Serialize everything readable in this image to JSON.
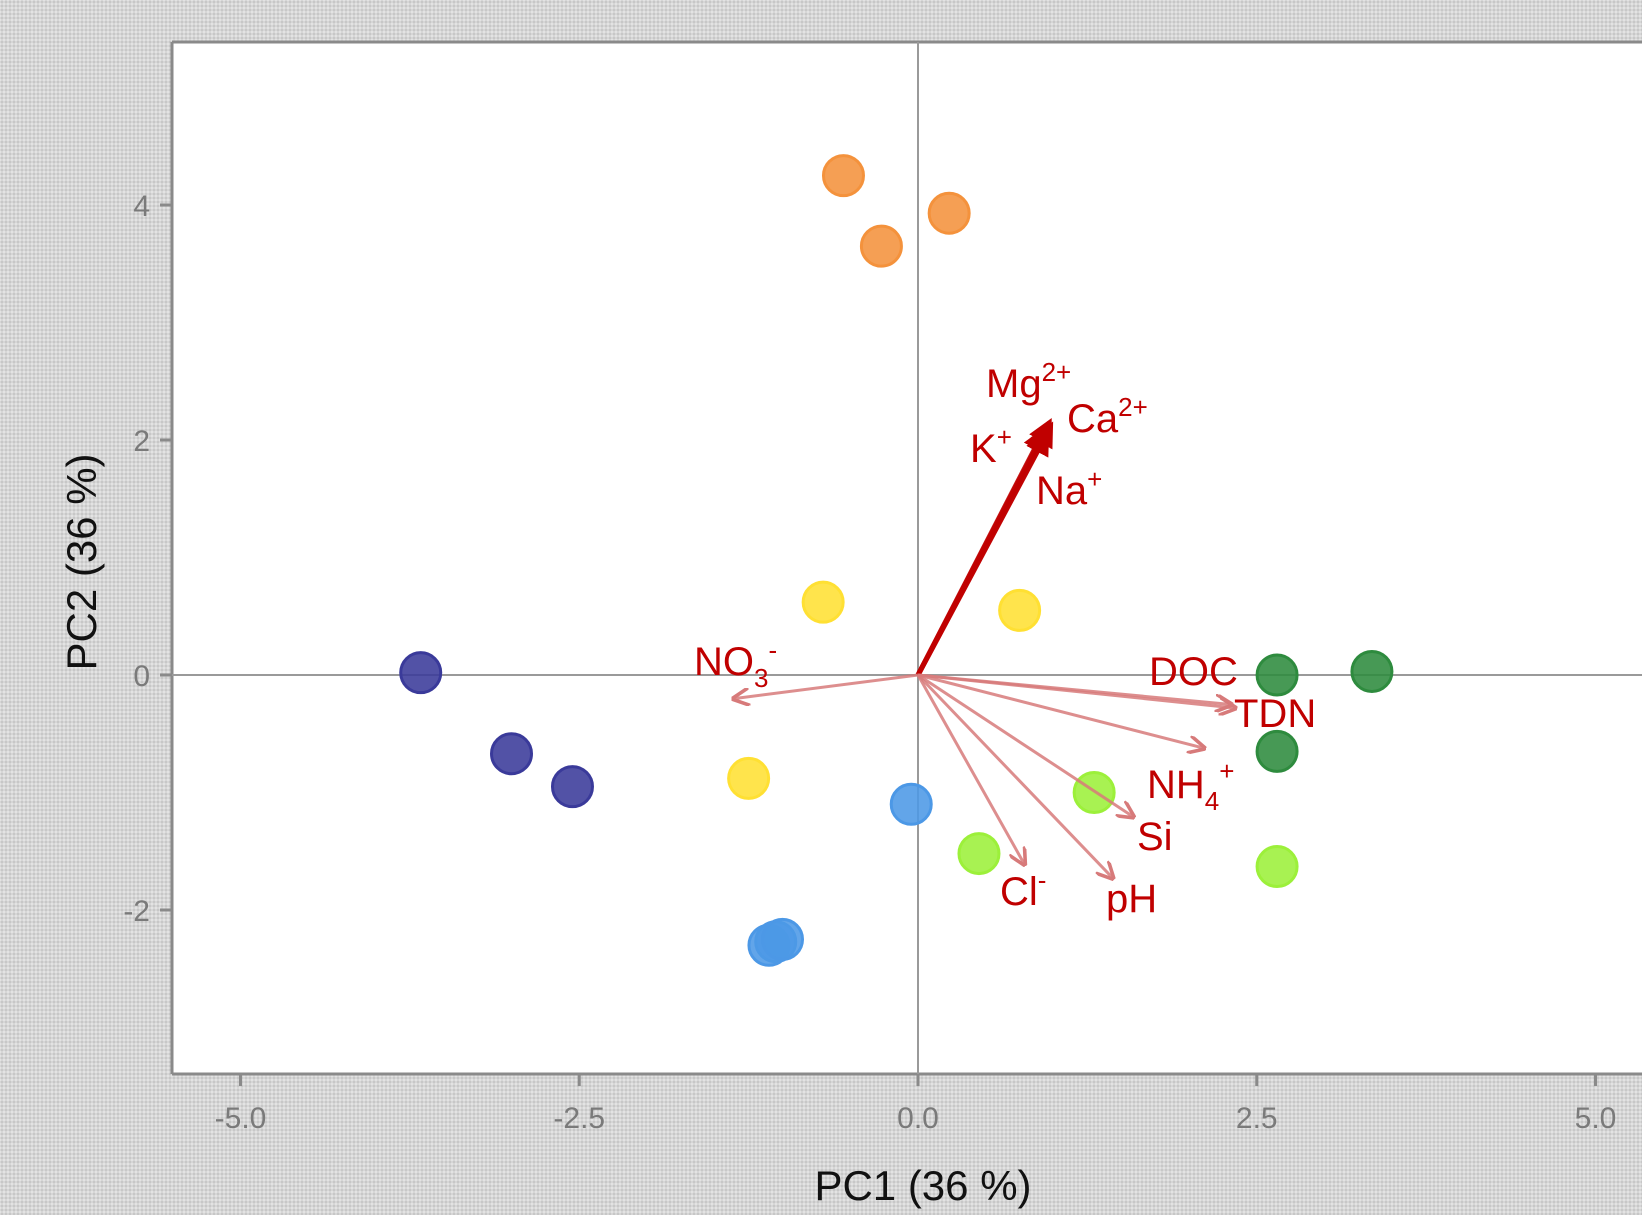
{
  "chart_data": {
    "type": "scatter",
    "subtype": "pca-biplot",
    "title": "",
    "xlabel": "PC1 (36 %)",
    "ylabel": "PC2 (36 %)",
    "xlim": [
      -5.5,
      5.3
    ],
    "ylim": [
      -3.4,
      5.3
    ],
    "x_ticks": [
      -5.0,
      -2.5,
      0.0,
      2.5,
      5.0
    ],
    "x_tick_labels": [
      "-5.0",
      "-2.5",
      "0.0",
      "2.5",
      "5.0"
    ],
    "y_ticks": [
      -2,
      0,
      2,
      4
    ],
    "y_tick_labels": [
      "-2",
      "0",
      "2",
      "4"
    ],
    "grid": false,
    "reference_lines": {
      "x": 0,
      "y": 0
    },
    "legend": "none",
    "series": [
      {
        "color": "#f4923c",
        "points": [
          [
            -0.55,
            4.25
          ],
          [
            0.23,
            3.93
          ],
          [
            -0.27,
            3.65
          ]
        ]
      },
      {
        "color": "#3a3a9a",
        "points": [
          [
            -3.67,
            0.02
          ],
          [
            -3.0,
            -0.67
          ],
          [
            -2.55,
            -0.95
          ]
        ]
      },
      {
        "color": "#ffe033",
        "points": [
          [
            -0.7,
            0.62
          ],
          [
            0.75,
            0.55
          ],
          [
            -1.25,
            -0.88
          ]
        ]
      },
      {
        "color": "#4c98e6",
        "points": [
          [
            -0.05,
            -1.1
          ],
          [
            -1.05,
            -2.27
          ],
          [
            -1.1,
            -2.3
          ],
          [
            -1.0,
            -2.25
          ]
        ]
      },
      {
        "color": "#2e8b3e",
        "points": [
          [
            2.65,
            0.0
          ],
          [
            3.35,
            0.03
          ],
          [
            2.65,
            -0.65
          ]
        ]
      },
      {
        "color": "#9cf03a",
        "points": [
          [
            1.3,
            -1.0
          ],
          [
            0.45,
            -1.52
          ],
          [
            2.65,
            -1.63
          ]
        ]
      }
    ],
    "loadings": [
      {
        "name": "Mg",
        "sup": "2+",
        "x": 0.97,
        "y": 2.15
      },
      {
        "name": "Ca",
        "sup": "2+",
        "x": 0.98,
        "y": 2.12
      },
      {
        "name": "K",
        "sup": "+",
        "x": 0.93,
        "y": 2.08
      },
      {
        "name": "Na",
        "sup": "+",
        "x": 0.95,
        "y": 2.05
      },
      {
        "name": "NO",
        "sub": "3",
        "sup": "-",
        "x": -1.35,
        "y": -0.2
      },
      {
        "name": "DOC",
        "x": 2.3,
        "y": -0.25
      },
      {
        "name": "TDN",
        "x": 2.33,
        "y": -0.28
      },
      {
        "name": "NH",
        "sub": "4",
        "sup": "+",
        "x": 2.1,
        "y": -0.62
      },
      {
        "name": "Si",
        "x": 1.58,
        "y": -1.2
      },
      {
        "name": "Cl",
        "sup": "-",
        "x": 0.78,
        "y": -1.6
      },
      {
        "name": "pH",
        "x": 1.43,
        "y": -1.72
      }
    ],
    "colors": {
      "arrow_strong": "#c00000",
      "arrow_light": "#d77a7a",
      "label": "#c00000"
    }
  }
}
